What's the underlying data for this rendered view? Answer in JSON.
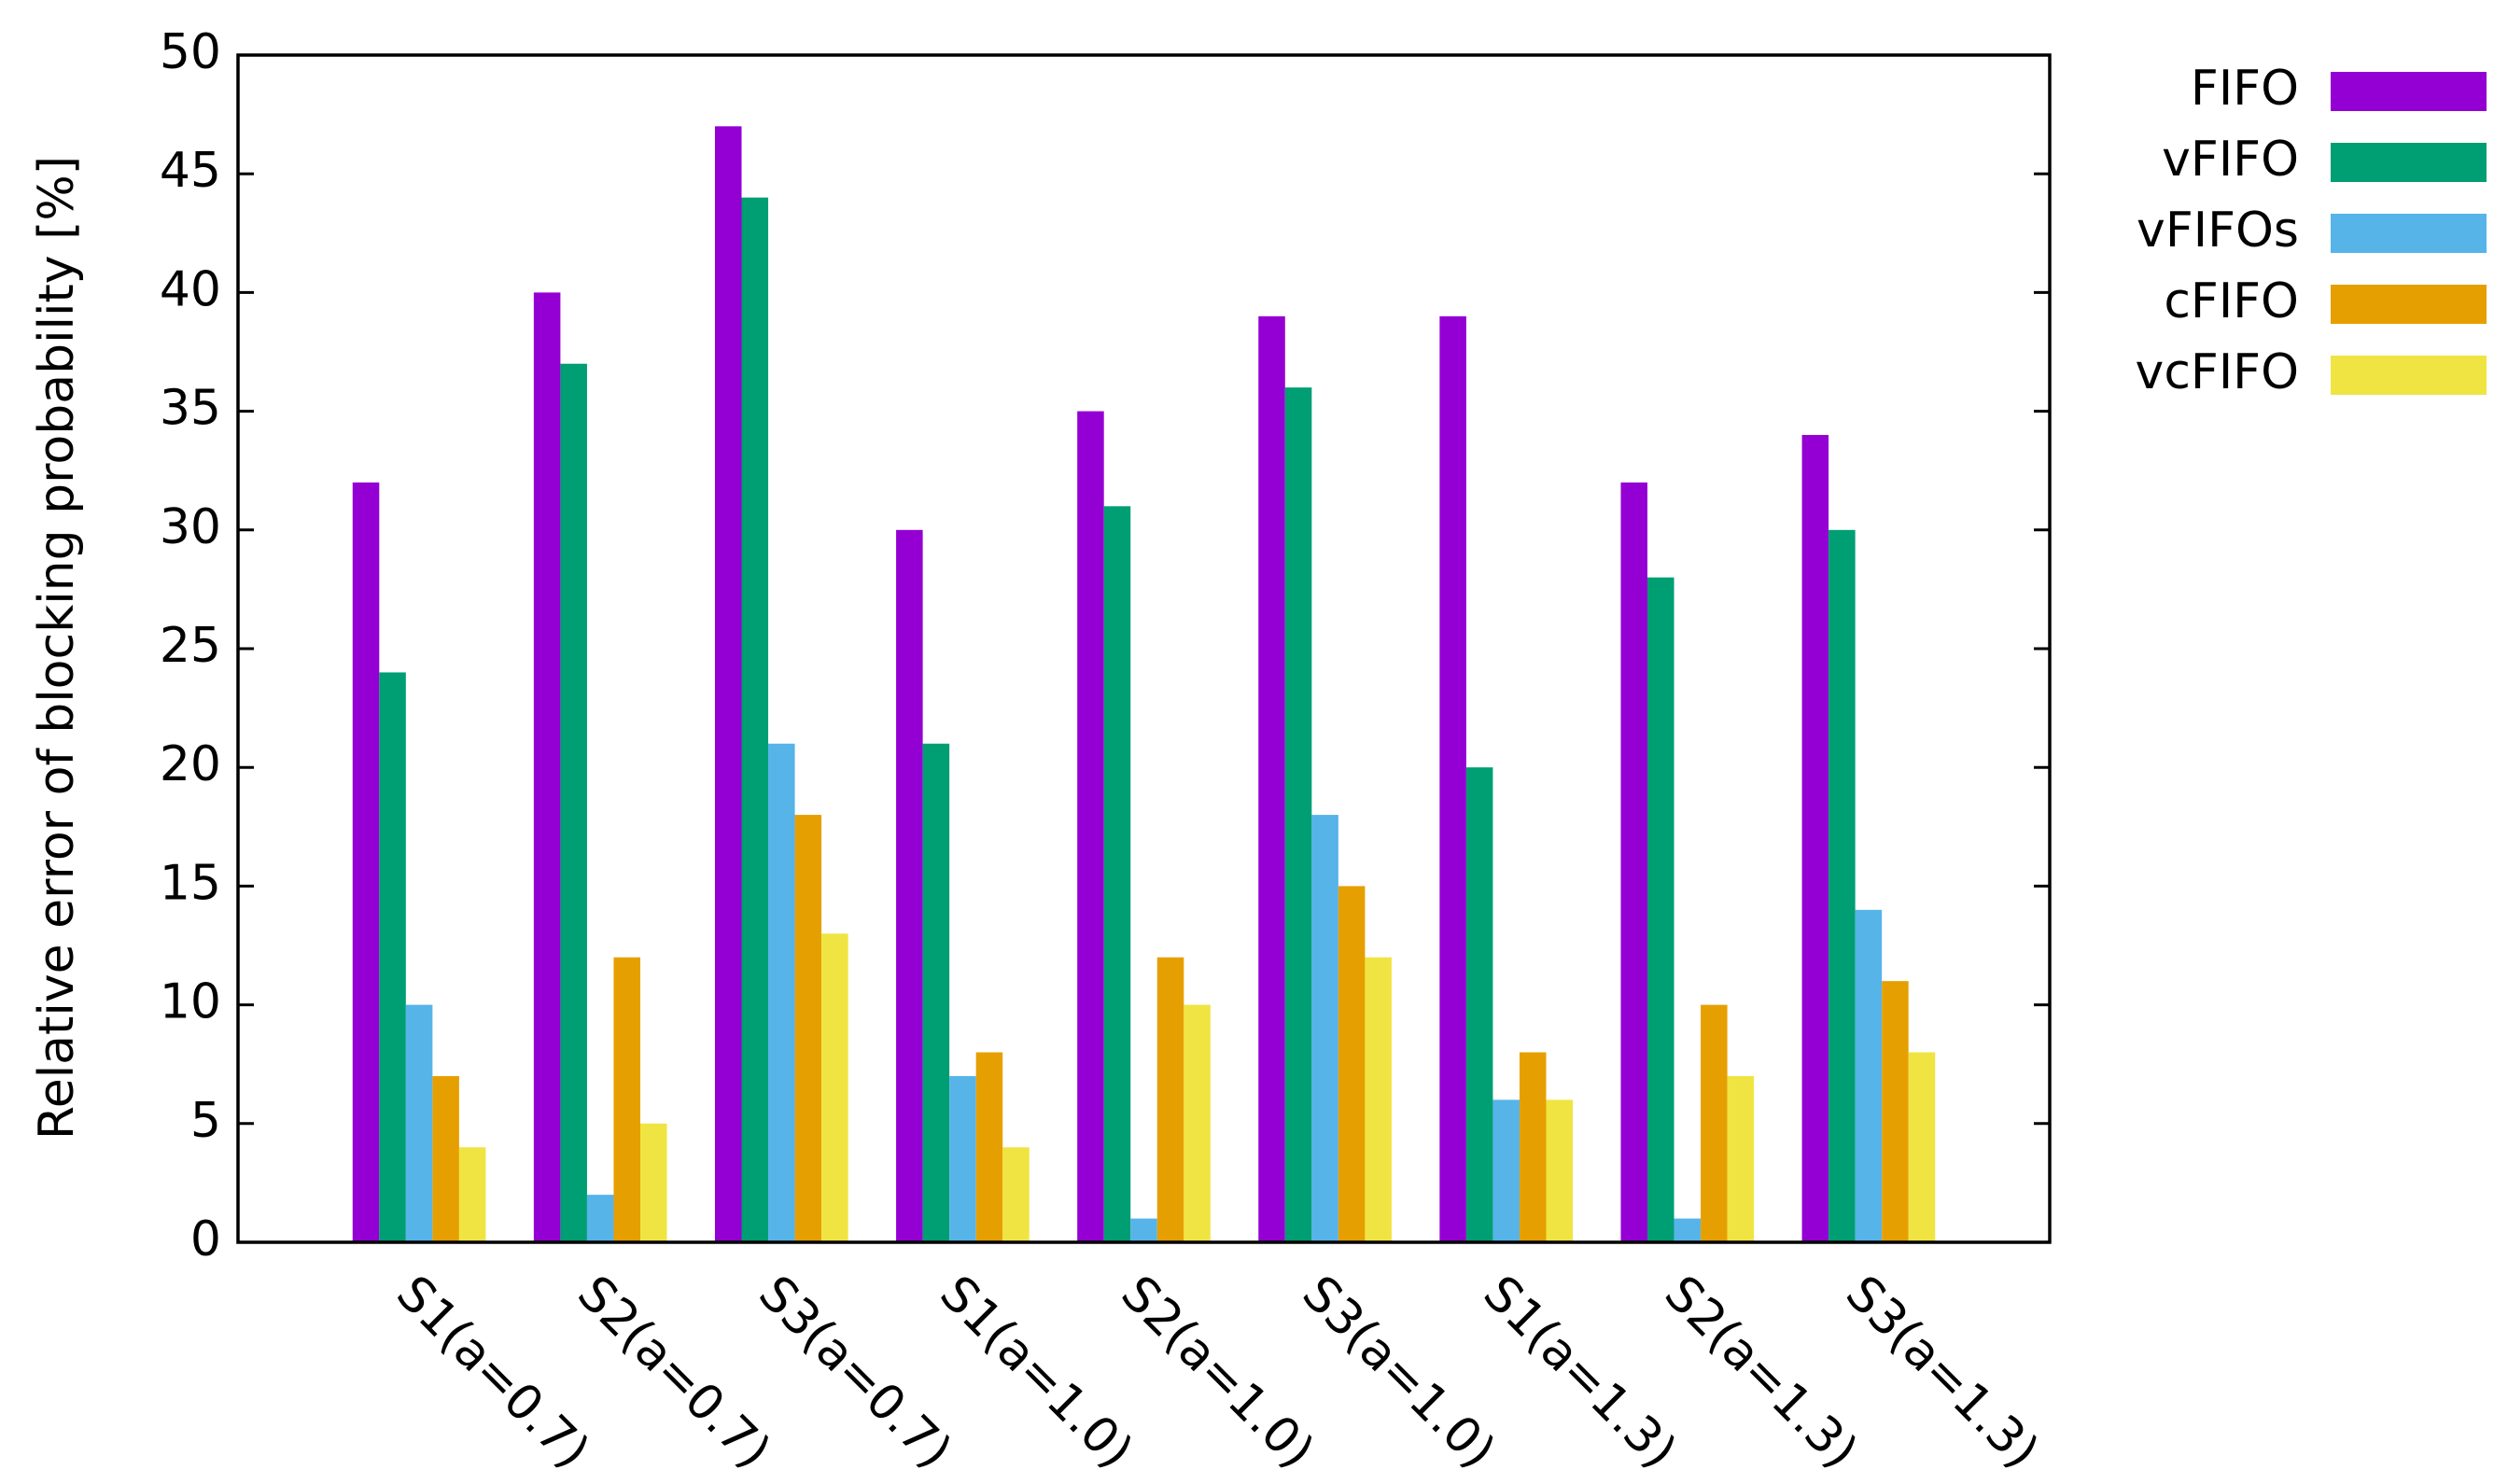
{
  "chart_data": {
    "type": "bar",
    "y_label": "Relative error of blocking probability [%]",
    "categories": [
      "S1(a=0.7)",
      "S2(a=0.7)",
      "S3(a=0.7)",
      "S1(a=1.0)",
      "S2(a=1.0)",
      "S3(a=1.0)",
      "S1(a=1.3)",
      "S2(a=1.3)",
      "S3(a=1.3)"
    ],
    "series": [
      {
        "name": "FIFO",
        "color": "#9400d3",
        "values": [
          32,
          40,
          47,
          30,
          35,
          39,
          39,
          32,
          34
        ]
      },
      {
        "name": "vFIFO",
        "color": "#009e73",
        "values": [
          24,
          37,
          44,
          21,
          31,
          36,
          20,
          28,
          30
        ]
      },
      {
        "name": "vFIFOs",
        "color": "#56b4e9",
        "values": [
          10,
          2,
          21,
          7,
          1,
          18,
          6,
          1,
          14
        ]
      },
      {
        "name": "cFIFO",
        "color": "#e69f00",
        "values": [
          7,
          12,
          18,
          8,
          12,
          15,
          8,
          10,
          11
        ]
      },
      {
        "name": "vcFIFO",
        "color": "#f0e442",
        "values": [
          4,
          5,
          13,
          4,
          10,
          12,
          6,
          7,
          8
        ]
      }
    ],
    "ylim": [
      0,
      50
    ],
    "yticks": [
      0,
      5,
      10,
      15,
      20,
      25,
      30,
      35,
      40,
      45,
      50
    ]
  }
}
